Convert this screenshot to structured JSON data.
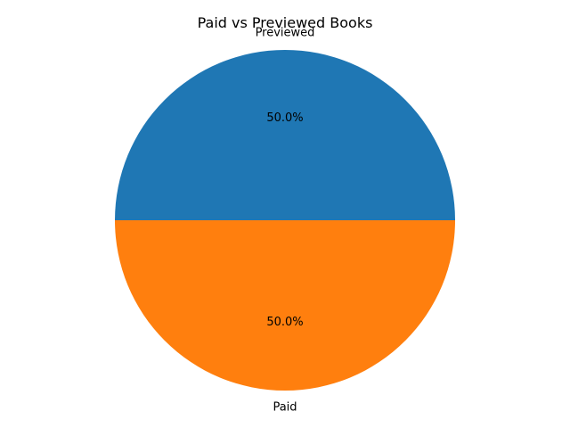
{
  "chart_data": {
    "type": "pie",
    "title": "Paid vs Previewed Books",
    "categories": [
      "Previewed",
      "Paid"
    ],
    "values": [
      50.0,
      50.0
    ],
    "percent_labels": [
      "50.0%",
      "50.0%"
    ],
    "colors": [
      "#1f77b4",
      "#ff7f0e"
    ],
    "start_angle_deg": 0,
    "direction": "counterclockwise",
    "legend": "none"
  }
}
